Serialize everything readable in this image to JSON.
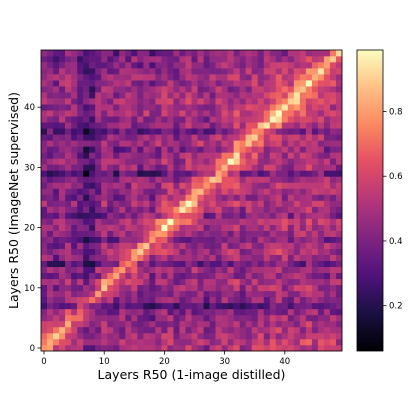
{
  "chart_data": {
    "type": "heatmap",
    "title": "",
    "xlabel": "Layers R50 (1-image distilled)",
    "ylabel": "Layers R50 (ImageNet supervised)",
    "n_rows": 50,
    "n_cols": 50,
    "xlim": [
      0,
      49
    ],
    "ylim": [
      0,
      49
    ],
    "x_ticks": [
      0,
      10,
      20,
      30,
      40
    ],
    "y_ticks": [
      0,
      10,
      20,
      30,
      40
    ],
    "x_tick_labels": [
      "0",
      "10",
      "20",
      "30",
      "40"
    ],
    "y_tick_labels": [
      "0",
      "10",
      "20",
      "30",
      "40"
    ],
    "colormap": "magma",
    "colorbar": {
      "min": 0.06,
      "max": 0.99,
      "ticks": [
        0.2,
        0.4,
        0.6,
        0.8
      ],
      "tick_labels": [
        "0.2",
        "0.4",
        "0.6",
        "0.8"
      ]
    },
    "description": "Layer-wise similarity between two ResNet-50 networks; the bright diagonal indicates higher similarity between corresponding layers, with dark bands at several layers and generally higher values in the upper-right region.",
    "row_means_approx": [
      0.55,
      0.6,
      0.5,
      0.45,
      0.45,
      0.4,
      0.35,
      0.15,
      0.35,
      0.4,
      0.45,
      0.5,
      0.35,
      0.45,
      0.2,
      0.45,
      0.5,
      0.45,
      0.3,
      0.45,
      0.5,
      0.55,
      0.35,
      0.45,
      0.5,
      0.4,
      0.45,
      0.5,
      0.45,
      0.2,
      0.45,
      0.5,
      0.45,
      0.35,
      0.5,
      0.45,
      0.25,
      0.45,
      0.5,
      0.55,
      0.5,
      0.55,
      0.5,
      0.45,
      0.5,
      0.5,
      0.45,
      0.4,
      0.4,
      0.35
    ],
    "col_means_approx": [
      0.4,
      0.4,
      0.35,
      0.4,
      0.45,
      0.35,
      0.3,
      0.15,
      0.2,
      0.35,
      0.45,
      0.4,
      0.35,
      0.45,
      0.4,
      0.45,
      0.4,
      0.45,
      0.35,
      0.45,
      0.5,
      0.5,
      0.4,
      0.45,
      0.5,
      0.5,
      0.5,
      0.35,
      0.45,
      0.5,
      0.55,
      0.5,
      0.55,
      0.45,
      0.5,
      0.55,
      0.55,
      0.5,
      0.55,
      0.6,
      0.55,
      0.5,
      0.55,
      0.55,
      0.6,
      0.55,
      0.55,
      0.5,
      0.5,
      0.45
    ]
  }
}
